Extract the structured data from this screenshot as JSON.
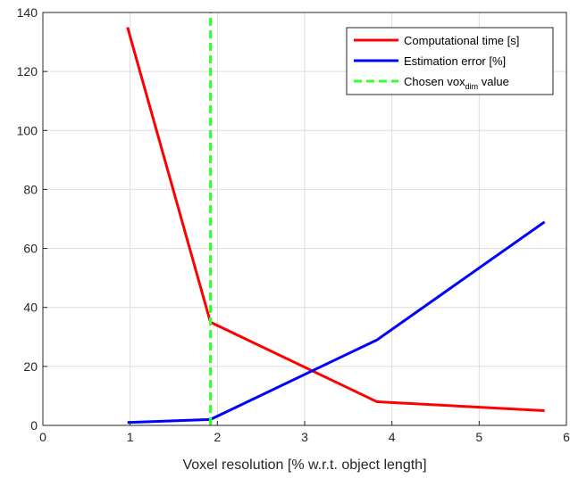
{
  "chart_data": {
    "type": "line",
    "xlabel": "Voxel resolution [% w.r.t. object length]",
    "ylabel": "",
    "xlim": [
      0,
      6
    ],
    "ylim": [
      0,
      140
    ],
    "xticks": [
      0,
      1,
      2,
      3,
      4,
      5,
      6
    ],
    "yticks": [
      0,
      20,
      40,
      60,
      80,
      100,
      120,
      140
    ],
    "grid": true,
    "legend_position": "top-right",
    "series": [
      {
        "name": "Computational time [s]",
        "color": "#ff0000",
        "style": "solid",
        "x": [
          0.97,
          1.92,
          3.83,
          5.75
        ],
        "y": [
          135,
          35,
          8,
          5
        ]
      },
      {
        "name": "Estimation error [%]",
        "color": "#0000ff",
        "style": "solid",
        "x": [
          0.97,
          1.92,
          3.83,
          5.75
        ],
        "y": [
          1,
          2,
          29,
          69
        ]
      },
      {
        "name": "Chosen vox",
        "name_subscript": "dim",
        "name_suffix": " value",
        "color": "#33ff33",
        "style": "dashed",
        "x": [
          1.92,
          1.92
        ],
        "y": [
          0,
          140
        ]
      }
    ]
  }
}
